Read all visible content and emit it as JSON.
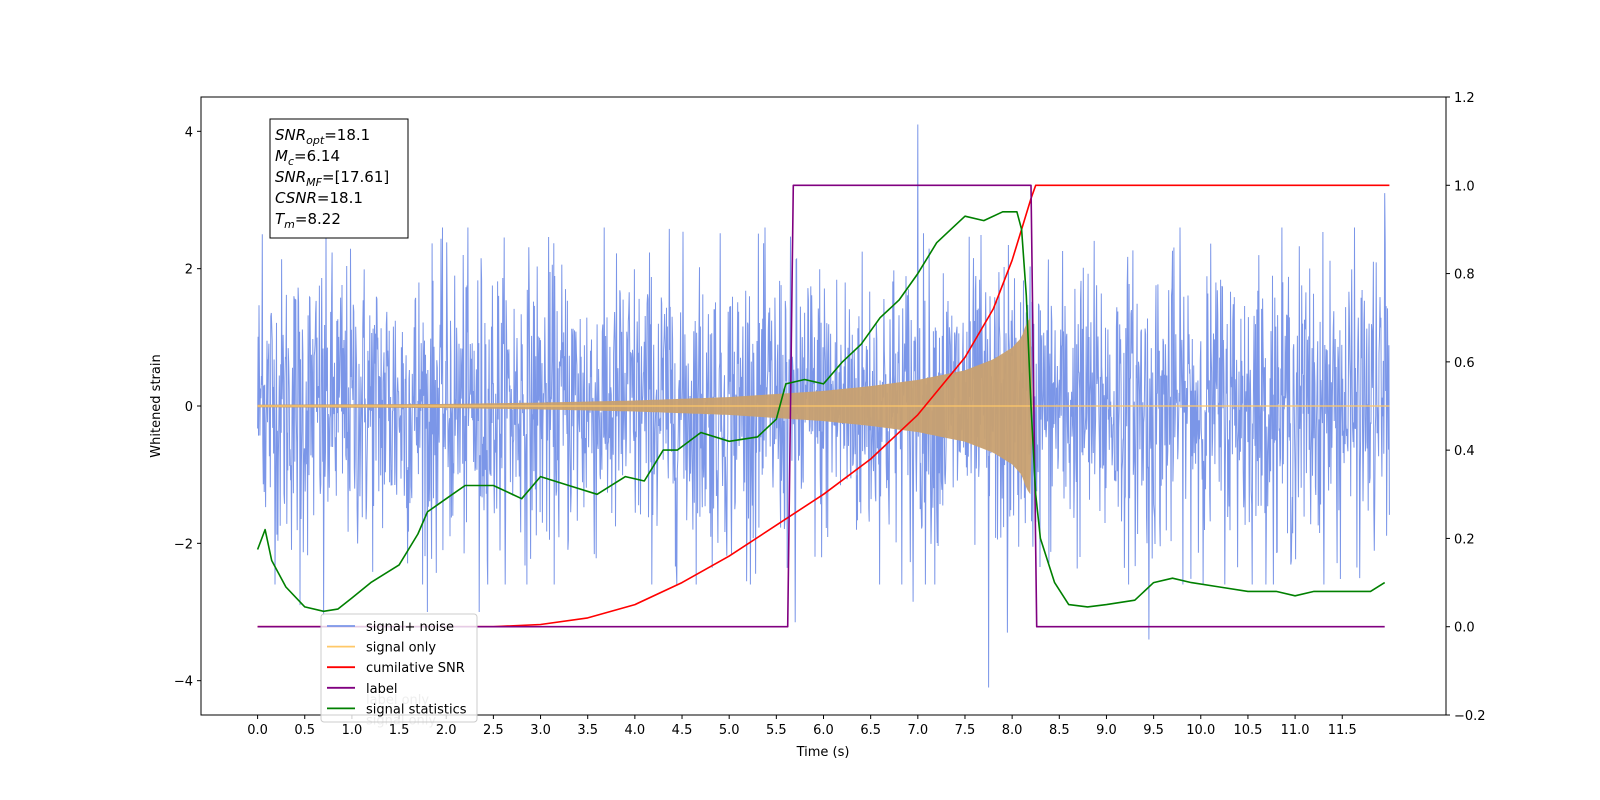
{
  "chart_data": {
    "type": "line",
    "xlabel": "Time (s)",
    "ylabel_left": "Whitened strain",
    "xlim": [
      -0.6,
      12.6
    ],
    "ylim_left": [
      -4.5,
      4.5
    ],
    "ylim_right": [
      -0.2,
      1.2
    ],
    "x_ticks": [
      "0.0",
      "0.5",
      "1.0",
      "1.5",
      "2.0",
      "2.5",
      "3.0",
      "3.5",
      "4.0",
      "4.5",
      "5.0",
      "5.5",
      "6.0",
      "6.5",
      "7.0",
      "7.5",
      "8.0",
      "8.5",
      "9.0",
      "9.5",
      "10.0",
      "10.5",
      "11.0",
      "11.5"
    ],
    "y_ticks_left": [
      "4",
      "2",
      "0",
      "−2",
      "−4"
    ],
    "y_ticks_right": [
      "1.2",
      "1.0",
      "0.8",
      "0.6",
      "0.4",
      "0.2",
      "0.0",
      "−0.2"
    ],
    "annotation": [
      {
        "main": "SNR",
        "sub": "opt",
        "rest": "=18.1"
      },
      {
        "main": "M",
        "sub": "c",
        "rest": "=6.14"
      },
      {
        "main": "SNR",
        "sub": "MF",
        "rest": "=[17.61]"
      },
      {
        "main": "CSNR",
        "sub": "",
        "rest": "=18.1"
      },
      {
        "main": "T",
        "sub": "m",
        "rest": "=8.22"
      }
    ],
    "legend": {
      "placement": "lower-left",
      "entries": [
        {
          "label": "signal+ noise",
          "color": "#7b96e8"
        },
        {
          "label": "signal only",
          "color": "#ffc868"
        },
        {
          "label": "cumilative SNR",
          "color": "#ff0000"
        },
        {
          "label": "label",
          "color": "#800080"
        },
        {
          "label": "signal statistics",
          "color": "#008000"
        }
      ],
      "hidden_labels": [
        "label only",
        "signal only"
      ]
    },
    "series": [
      {
        "name": "signal+ noise",
        "axis": "left",
        "color": "#7b96e8",
        "x_range": [
          0.0,
          12.0
        ],
        "typical_amplitude": 1.7,
        "peak_values": [
          [
            0.05,
            2.5
          ],
          [
            0.45,
            -2.9
          ],
          [
            0.7,
            -3.05
          ],
          [
            1.8,
            -3.0
          ],
          [
            2.35,
            -3.0
          ],
          [
            5.7,
            -3.15
          ],
          [
            6.95,
            -2.85
          ],
          [
            7.0,
            4.1
          ],
          [
            7.75,
            -4.1
          ],
          [
            7.95,
            -3.3
          ],
          [
            9.45,
            -3.4
          ],
          [
            11.95,
            3.1
          ]
        ]
      },
      {
        "name": "signal only",
        "axis": "left",
        "color": "#c8a070",
        "x_range": [
          0.0,
          8.22
        ],
        "envelope": [
          [
            0.0,
            0.02
          ],
          [
            2.0,
            0.03
          ],
          [
            3.0,
            0.05
          ],
          [
            4.0,
            0.08
          ],
          [
            5.0,
            0.13
          ],
          [
            6.0,
            0.22
          ],
          [
            6.5,
            0.29
          ],
          [
            7.0,
            0.38
          ],
          [
            7.5,
            0.52
          ],
          [
            7.8,
            0.68
          ],
          [
            8.0,
            0.85
          ],
          [
            8.1,
            1.0
          ],
          [
            8.15,
            1.2
          ],
          [
            8.2,
            1.3
          ],
          [
            8.22,
            0.0
          ]
        ]
      },
      {
        "name": "cumilative SNR",
        "axis": "right",
        "color": "#ff0000",
        "x": [
          0.0,
          2.5,
          3.0,
          3.5,
          4.0,
          4.5,
          5.0,
          5.5,
          6.0,
          6.5,
          7.0,
          7.5,
          7.8,
          8.0,
          8.1,
          8.2,
          8.25,
          12.0
        ],
        "y": [
          0.0,
          0.0,
          0.005,
          0.02,
          0.05,
          0.1,
          0.16,
          0.23,
          0.3,
          0.38,
          0.48,
          0.61,
          0.72,
          0.83,
          0.9,
          0.97,
          1.0,
          1.0
        ]
      },
      {
        "name": "label",
        "axis": "right",
        "color": "#800080",
        "x": [
          0.0,
          5.62,
          5.68,
          8.2,
          8.26,
          11.95
        ],
        "y": [
          0.0,
          0.0,
          1.0,
          1.0,
          0.0,
          0.0
        ]
      },
      {
        "name": "signal statistics",
        "axis": "right",
        "color": "#008000",
        "x": [
          0.0,
          0.08,
          0.15,
          0.3,
          0.5,
          0.7,
          0.85,
          1.0,
          1.2,
          1.5,
          1.7,
          1.8,
          2.0,
          2.2,
          2.5,
          2.8,
          3.0,
          3.3,
          3.6,
          3.9,
          4.1,
          4.3,
          4.45,
          4.7,
          5.0,
          5.3,
          5.5,
          5.6,
          5.8,
          6.0,
          6.2,
          6.4,
          6.6,
          6.8,
          7.0,
          7.2,
          7.35,
          7.5,
          7.7,
          7.9,
          8.05,
          8.1,
          8.15,
          8.2,
          8.25,
          8.3,
          8.45,
          8.6,
          8.8,
          9.0,
          9.3,
          9.5,
          9.7,
          9.9,
          10.2,
          10.5,
          10.8,
          11.0,
          11.2,
          11.5,
          11.8,
          11.95
        ],
        "y": [
          0.175,
          0.22,
          0.15,
          0.09,
          0.045,
          0.035,
          0.04,
          0.065,
          0.1,
          0.14,
          0.21,
          0.26,
          0.29,
          0.32,
          0.32,
          0.29,
          0.34,
          0.32,
          0.3,
          0.34,
          0.33,
          0.4,
          0.4,
          0.44,
          0.42,
          0.43,
          0.47,
          0.55,
          0.56,
          0.55,
          0.6,
          0.64,
          0.7,
          0.74,
          0.8,
          0.87,
          0.9,
          0.93,
          0.92,
          0.94,
          0.94,
          0.9,
          0.75,
          0.5,
          0.3,
          0.2,
          0.1,
          0.05,
          0.045,
          0.05,
          0.06,
          0.1,
          0.11,
          0.1,
          0.09,
          0.08,
          0.08,
          0.07,
          0.08,
          0.08,
          0.08,
          0.1
        ]
      }
    ]
  }
}
